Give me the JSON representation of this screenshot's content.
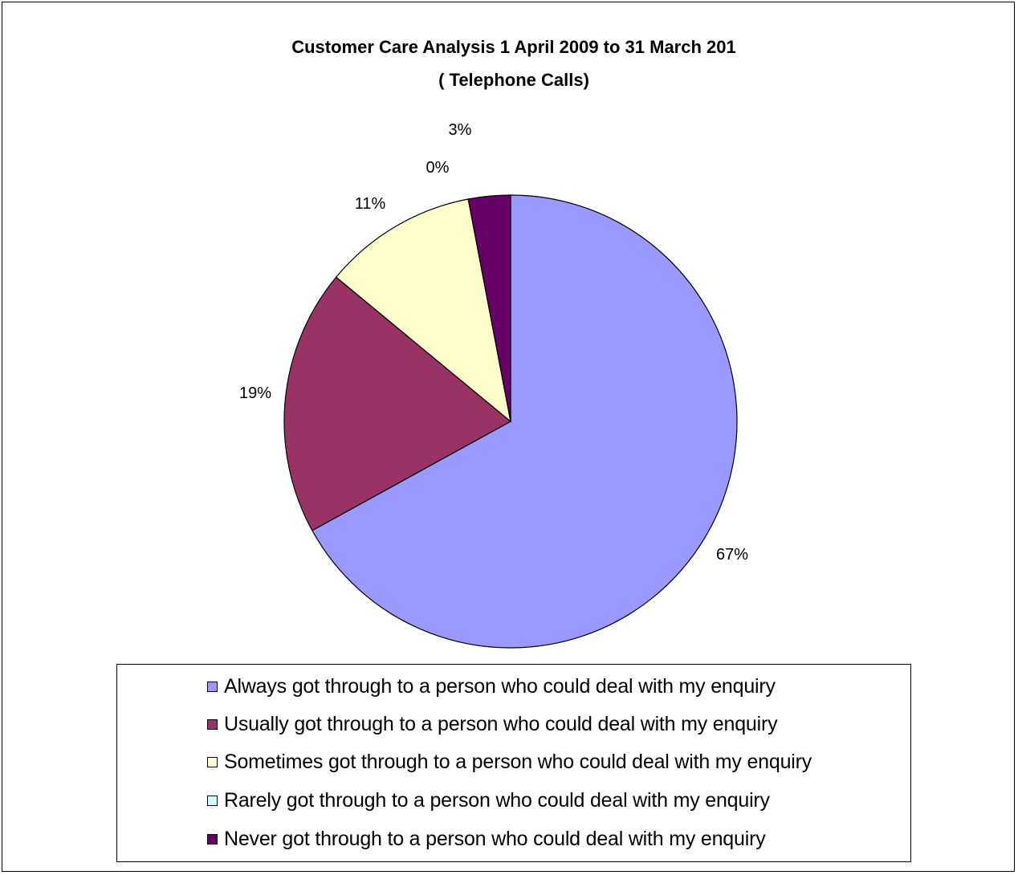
{
  "chart_data": {
    "type": "pie",
    "title": "Customer Care Analysis 1 April 2009 to 31 March 201",
    "subtitle": "( Telephone Calls)",
    "categories": [
      "Always got through to a person who could deal with my enquiry",
      "Usually got through to a person who could deal with my enquiry",
      "Sometimes got through to a person who could deal with my enquiry",
      "Rarely got through to a person who could deal with my enquiry",
      "Never got through to a person who could deal with my enquiry"
    ],
    "values": [
      67,
      19,
      11,
      0,
      3
    ],
    "data_labels": [
      "67%",
      "19%",
      "11%",
      "0%",
      "3%"
    ],
    "colors": [
      "#9999FF",
      "#993366",
      "#FFFFCC",
      "#CCFFFF",
      "#660066"
    ],
    "legend_position": "bottom"
  }
}
